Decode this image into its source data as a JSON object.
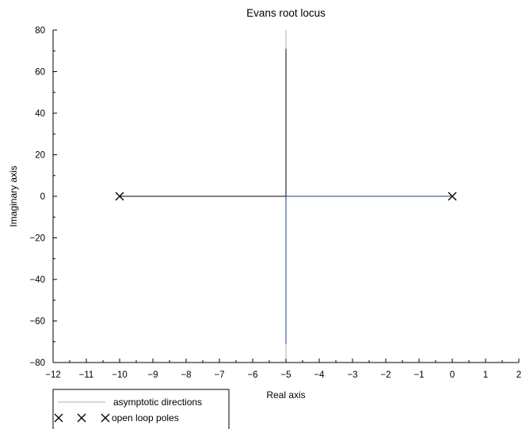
{
  "chart_data": {
    "type": "scatter",
    "title": "Evans root locus",
    "xlabel": "Real axis",
    "ylabel": "Imaginary axis",
    "xlim": [
      -12,
      2
    ],
    "ylim": [
      -80,
      80
    ],
    "x_ticks": [
      -12,
      -11,
      -10,
      -9,
      -8,
      -7,
      -6,
      -5,
      -4,
      -3,
      -2,
      -1,
      0,
      1,
      2
    ],
    "y_ticks": [
      -80,
      -60,
      -40,
      -20,
      0,
      20,
      40,
      60,
      80
    ],
    "grid": false,
    "legend": {
      "placement": "bottom-left",
      "entries": [
        "asymptotic directions",
        "open loop poles"
      ]
    },
    "series": [
      {
        "name": "asymptotic directions",
        "kind": "asymptote",
        "color": "#b0b0b0",
        "segments": [
          {
            "x": [
              -5,
              -5
            ],
            "y": [
              -80,
              80
            ]
          }
        ]
      },
      {
        "name": "open loop poles",
        "kind": "markers",
        "marker": "x",
        "color": "#000000",
        "points": [
          {
            "x": -10,
            "y": 0
          },
          {
            "x": 0,
            "y": 0
          }
        ]
      },
      {
        "kind": "locus",
        "colors": [
          "#000000",
          "#1f3b8c"
        ],
        "segments": [
          {
            "x": [
              -10,
              -5
            ],
            "y": [
              0,
              0
            ],
            "color": "#000000"
          },
          {
            "x": [
              -5,
              0
            ],
            "y": [
              0,
              0
            ],
            "color": "#1f3b8c"
          },
          {
            "x": [
              -5,
              -5
            ],
            "y": [
              0,
              71
            ],
            "color": "#000000"
          },
          {
            "x": [
              -5,
              -5
            ],
            "y": [
              0,
              -71
            ],
            "color": "#1f3b8c"
          }
        ]
      }
    ]
  }
}
